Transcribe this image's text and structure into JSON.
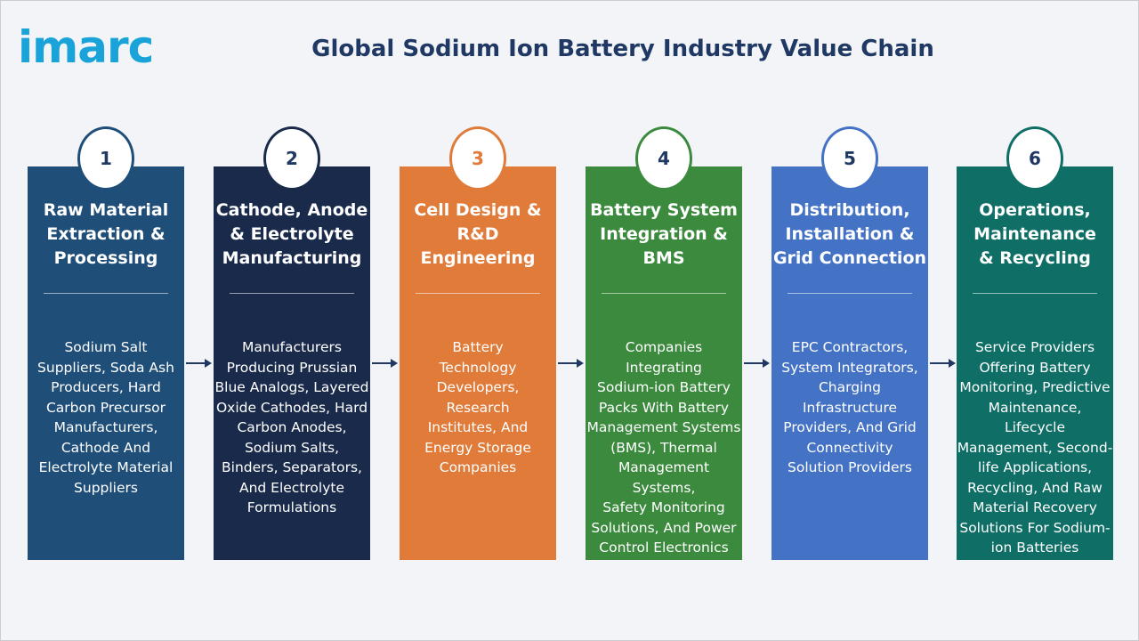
{
  "logo": "imarc",
  "title": "Global Sodium Ion Battery Industry Value Chain",
  "colors": {
    "title": "#1f3864",
    "logo": "#1aa3d8",
    "stage1": "#1f4e79",
    "stage2": "#1a2a4a",
    "stage3": "#e07b39",
    "stage4": "#3b8a3e",
    "stage5": "#4472c4",
    "stage6": "#0f6e66"
  },
  "stages": [
    {
      "number": "1",
      "title": "Raw Material\nExtraction &\nProcessing",
      "description": "Sodium Salt\nSuppliers, Soda Ash\nProducers, Hard\nCarbon Precursor\nManufacturers,\nCathode And\nElectrolyte Material\nSuppliers",
      "color": "#1f4e79"
    },
    {
      "number": "2",
      "title": "Cathode, Anode\n& Electrolyte\nManufacturing",
      "description": "Manufacturers\nProducing Prussian\nBlue Analogs, Layered\nOxide Cathodes, Hard\nCarbon Anodes,\nSodium Salts,\nBinders, Separators,\nAnd Electrolyte\nFormulations",
      "color": "#1a2a4a"
    },
    {
      "number": "3",
      "title": "Cell Design &\nR&D\nEngineering",
      "description": "Battery\nTechnology\nDevelopers,\nResearch\nInstitutes, And\nEnergy Storage\nCompanies",
      "color": "#e07b39"
    },
    {
      "number": "4",
      "title": "Battery System\nIntegration &\nBMS",
      "description": "Companies Integrating\nSodium-ion Battery\nPacks With Battery\nManagement Systems\n(BMS), Thermal\nManagement Systems,\nSafety Monitoring\nSolutions, And Power\nControl Electronics",
      "color": "#3b8a3e"
    },
    {
      "number": "5",
      "title": "Distribution,\nInstallation &\nGrid Connection",
      "description": "EPC Contractors,\nSystem Integrators,\nCharging\nInfrastructure\nProviders, And Grid\nConnectivity\nSolution Providers",
      "color": "#4472c4"
    },
    {
      "number": "6",
      "title": "Operations,\nMaintenance\n& Recycling",
      "description": "Service Providers\nOffering Battery\nMonitoring, Predictive\nMaintenance, Lifecycle\nManagement, Second-\nlife Applications,\nRecycling, And Raw\nMaterial Recovery\nSolutions For Sodium-\nion Batteries",
      "color": "#0f6e66"
    }
  ]
}
